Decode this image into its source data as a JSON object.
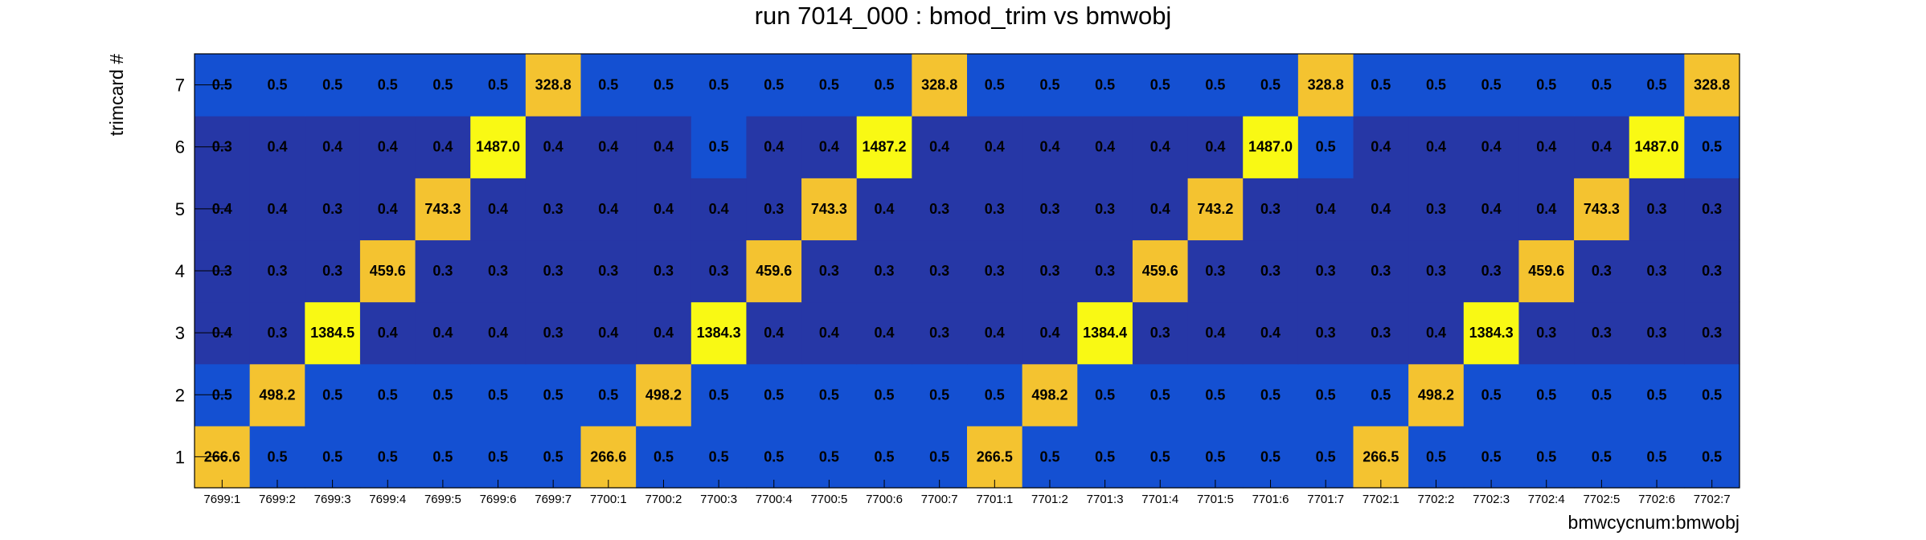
{
  "chart_data": {
    "type": "heatmap",
    "title": "run 7014_000 : bmod_trim vs bmwobj",
    "xlabel": "bmwcycnum:bmwobj",
    "ylabel": "trimcard #",
    "x_categories": [
      "7699:1",
      "7699:2",
      "7699:3",
      "7699:4",
      "7699:5",
      "7699:6",
      "7699:7",
      "7700:1",
      "7700:2",
      "7700:3",
      "7700:4",
      "7700:5",
      "7700:6",
      "7700:7",
      "7701:1",
      "7701:2",
      "7701:3",
      "7701:4",
      "7701:5",
      "7701:6",
      "7701:7",
      "7702:1",
      "7702:2",
      "7702:3",
      "7702:4",
      "7702:5",
      "7702:6",
      "7702:7"
    ],
    "y_categories": [
      "1",
      "2",
      "3",
      "4",
      "5",
      "6",
      "7"
    ],
    "values": [
      [
        "266.6",
        "0.5",
        "0.5",
        "0.5",
        "0.5",
        "0.5",
        "0.5",
        "266.6",
        "0.5",
        "0.5",
        "0.5",
        "0.5",
        "0.5",
        "0.5",
        "266.5",
        "0.5",
        "0.5",
        "0.5",
        "0.5",
        "0.5",
        "0.5",
        "266.5",
        "0.5",
        "0.5",
        "0.5",
        "0.5",
        "0.5",
        "0.5"
      ],
      [
        "0.5",
        "498.2",
        "0.5",
        "0.5",
        "0.5",
        "0.5",
        "0.5",
        "0.5",
        "498.2",
        "0.5",
        "0.5",
        "0.5",
        "0.5",
        "0.5",
        "0.5",
        "498.2",
        "0.5",
        "0.5",
        "0.5",
        "0.5",
        "0.5",
        "0.5",
        "498.2",
        "0.5",
        "0.5",
        "0.5",
        "0.5",
        "0.5"
      ],
      [
        "0.4",
        "0.3",
        "1384.5",
        "0.4",
        "0.4",
        "0.4",
        "0.3",
        "0.4",
        "0.4",
        "1384.3",
        "0.4",
        "0.4",
        "0.4",
        "0.3",
        "0.4",
        "0.4",
        "1384.4",
        "0.3",
        "0.4",
        "0.4",
        "0.3",
        "0.3",
        "0.4",
        "1384.3",
        "0.3",
        "0.3",
        "0.3",
        "0.3"
      ],
      [
        "0.3",
        "0.3",
        "0.3",
        "459.6",
        "0.3",
        "0.3",
        "0.3",
        "0.3",
        "0.3",
        "0.3",
        "459.6",
        "0.3",
        "0.3",
        "0.3",
        "0.3",
        "0.3",
        "0.3",
        "459.6",
        "0.3",
        "0.3",
        "0.3",
        "0.3",
        "0.3",
        "0.3",
        "459.6",
        "0.3",
        "0.3",
        "0.3"
      ],
      [
        "0.4",
        "0.4",
        "0.3",
        "0.4",
        "743.3",
        "0.4",
        "0.3",
        "0.4",
        "0.4",
        "0.4",
        "0.3",
        "743.3",
        "0.4",
        "0.3",
        "0.3",
        "0.3",
        "0.3",
        "0.4",
        "743.2",
        "0.3",
        "0.4",
        "0.4",
        "0.3",
        "0.4",
        "0.4",
        "743.3",
        "0.3",
        "0.3"
      ],
      [
        "0.3",
        "0.4",
        "0.4",
        "0.4",
        "0.4",
        "1487.0",
        "0.4",
        "0.4",
        "0.4",
        "0.5",
        "0.4",
        "0.4",
        "1487.2",
        "0.4",
        "0.4",
        "0.4",
        "0.4",
        "0.4",
        "0.4",
        "1487.0",
        "0.5",
        "0.4",
        "0.4",
        "0.4",
        "0.4",
        "0.4",
        "1487.0",
        "0.5"
      ],
      [
        "0.5",
        "0.5",
        "0.5",
        "0.5",
        "0.5",
        "0.5",
        "328.8",
        "0.5",
        "0.5",
        "0.5",
        "0.5",
        "0.5",
        "0.5",
        "328.8",
        "0.5",
        "0.5",
        "0.5",
        "0.5",
        "0.5",
        "0.5",
        "328.8",
        "0.5",
        "0.5",
        "0.5",
        "0.5",
        "0.5",
        "0.5",
        "328.8"
      ]
    ],
    "zmin": 0.3,
    "zmax": 1487.2,
    "colors": {
      "low": "#2637a6",
      "mid_low": "#1450d2",
      "high_mid": "#f4c330",
      "high": "#f9f914"
    },
    "grid": false,
    "legend": "none"
  }
}
